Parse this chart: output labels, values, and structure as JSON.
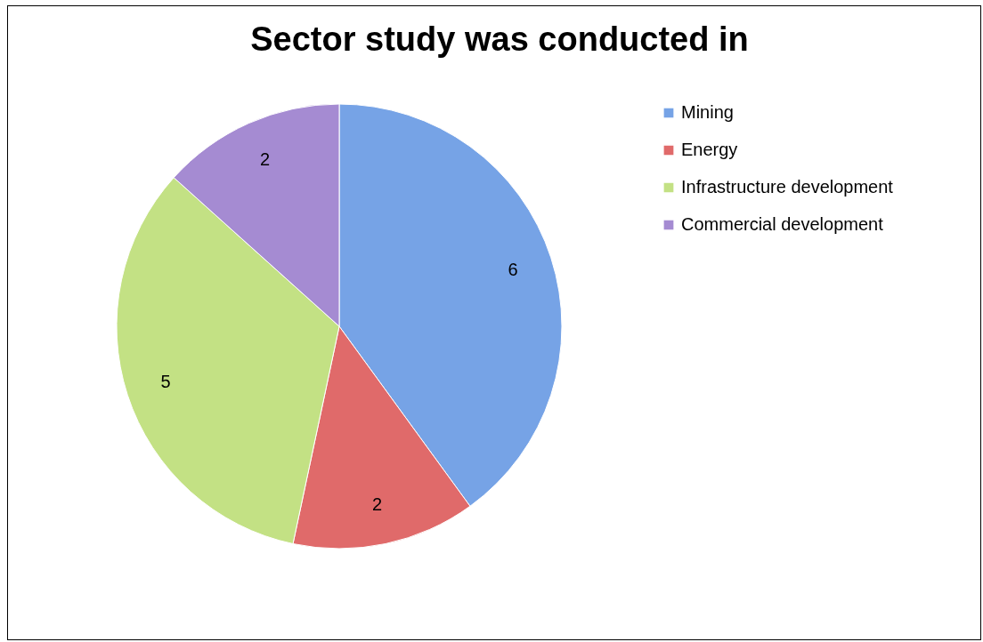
{
  "chart_data": {
    "type": "pie",
    "title": "Sector study was conducted in",
    "categories": [
      "Mining",
      "Energy",
      "Infrastructure development",
      "Commercial development"
    ],
    "values": [
      6,
      2,
      5,
      2
    ],
    "colors": [
      "#76a3e6",
      "#e06a6a",
      "#c3e184",
      "#a58bd2"
    ],
    "data_labels": true,
    "legend": "right"
  }
}
